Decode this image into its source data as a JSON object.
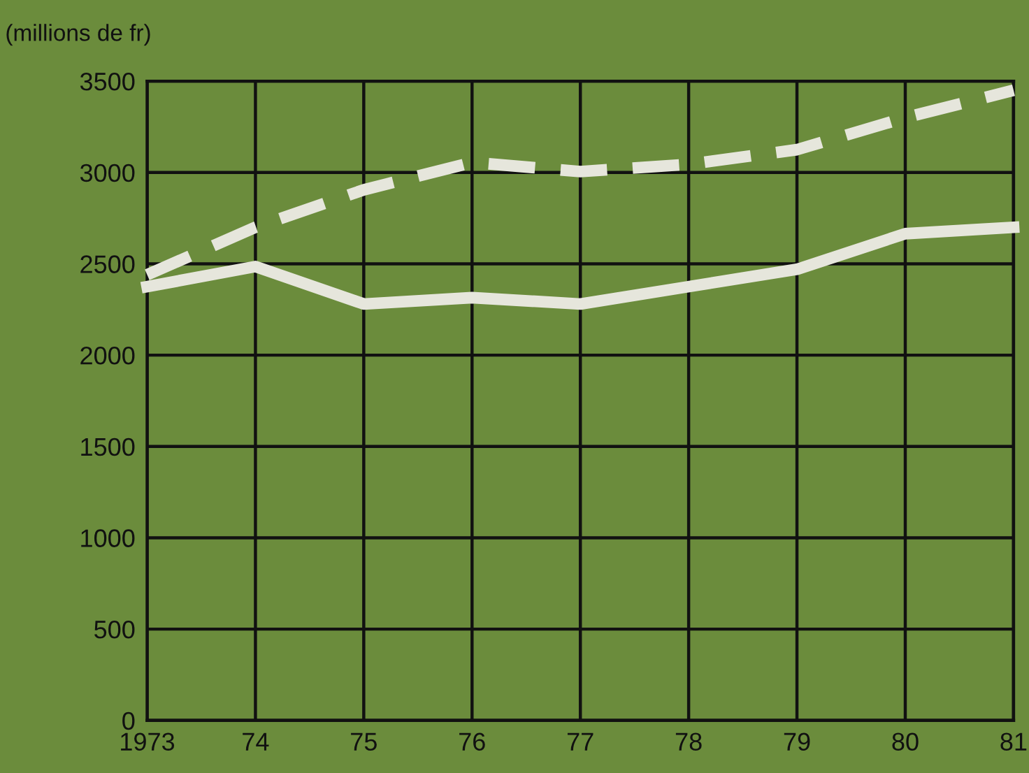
{
  "chart_data": {
    "type": "line",
    "ylabel": "(millions de fr)",
    "x": [
      1973,
      1974,
      1975,
      1976,
      1977,
      1978,
      1979,
      1980,
      1981
    ],
    "series": [
      {
        "color": "#e6e6dc",
        "line_style": "solid",
        "values": [
          2375,
          2485,
          2280,
          2315,
          2280,
          2375,
          2470,
          2665,
          2700
        ]
      },
      {
        "color": "#e6e6dc",
        "line_style": "dashed",
        "values": [
          2440,
          2700,
          2905,
          3055,
          3005,
          3045,
          3125,
          3300,
          3450
        ]
      }
    ],
    "xlim": [
      1973,
      1981
    ],
    "xticks": [
      {
        "value": 1973,
        "label": "1973"
      },
      {
        "value": 1974,
        "label": "74"
      },
      {
        "value": 1975,
        "label": "75"
      },
      {
        "value": 1976,
        "label": "76"
      },
      {
        "value": 1977,
        "label": "77"
      },
      {
        "value": 1978,
        "label": "78"
      },
      {
        "value": 1979,
        "label": "79"
      },
      {
        "value": 1980,
        "label": "80"
      },
      {
        "value": 1981,
        "label": "81"
      }
    ],
    "ylim": [
      0,
      3500
    ],
    "yticks": [
      0,
      500,
      1000,
      1500,
      2000,
      2500,
      3000,
      3500
    ],
    "grid": true,
    "legend": false,
    "marker": "none"
  }
}
